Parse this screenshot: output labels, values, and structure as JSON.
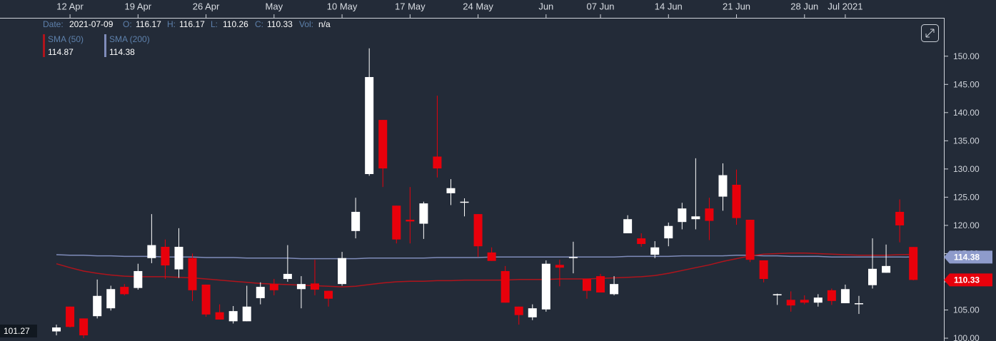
{
  "chart_data": {
    "type": "candlestick",
    "categories": [
      null,
      "12 Apr",
      null,
      null,
      null,
      null,
      "19 Apr",
      null,
      null,
      null,
      null,
      "26 Apr",
      null,
      null,
      null,
      null,
      "May",
      null,
      null,
      null,
      null,
      "10 May",
      null,
      null,
      null,
      null,
      "17 May",
      null,
      null,
      null,
      null,
      "24 May",
      null,
      null,
      null,
      null,
      "Jun",
      null,
      null,
      null,
      "07 Jun",
      null,
      null,
      null,
      null,
      "14 Jun",
      null,
      null,
      null,
      null,
      "21 Jun",
      null,
      null,
      null,
      null,
      "28 Jun",
      null,
      null,
      "Jul 2021",
      null,
      null,
      null,
      null,
      null
    ],
    "open": [
      101.2,
      105.6,
      103.5,
      103.9,
      105.3,
      109.1,
      108.9,
      114.2,
      116.2,
      112.2,
      114.2,
      109.5,
      104.6,
      103.0,
      103.0,
      107.1,
      109.6,
      110.5,
      108.7,
      109.7,
      108.4,
      109.6,
      119.0,
      129.1,
      138.7,
      123.5,
      121.0,
      120.3,
      132.2,
      125.7,
      124.1,
      122.0,
      115.2,
      111.9,
      105.6,
      103.7,
      105.1,
      113.0,
      114.2,
      110.5,
      111.0,
      107.8,
      118.6,
      117.7,
      114.8,
      117.7,
      120.6,
      121.1,
      123.0,
      125.1,
      127.2,
      121.0,
      113.8,
      107.6,
      106.8,
      106.8,
      106.3,
      108.5,
      106.2,
      106.2,
      109.4,
      111.6,
      122.4,
      116.17
    ],
    "high": [
      102.4,
      105.6,
      103.5,
      110.4,
      109.3,
      109.6,
      113.2,
      122.0,
      117.5,
      119.5,
      115.0,
      109.5,
      106.0,
      105.7,
      109.3,
      109.9,
      110.5,
      116.5,
      111.0,
      113.9,
      108.4,
      115.3,
      124.9,
      151.4,
      138.7,
      123.5,
      126.8,
      124.2,
      143.0,
      128.2,
      124.8,
      122.0,
      116.1,
      112.8,
      105.6,
      106.0,
      113.8,
      113.9,
      117.1,
      110.5,
      111.4,
      111.0,
      121.8,
      118.6,
      117.2,
      120.5,
      124.0,
      131.9,
      124.9,
      131.0,
      129.9,
      121.0,
      113.8,
      107.9,
      108.3,
      107.6,
      107.8,
      108.8,
      109.5,
      107.5,
      117.7,
      116.6,
      124.6,
      116.17
    ],
    "low": [
      100.5,
      101.9,
      100.0,
      103.5,
      104.9,
      107.6,
      108.6,
      113.3,
      110.5,
      110.7,
      106.6,
      103.8,
      103.3,
      102.6,
      103.0,
      106.0,
      107.6,
      110.0,
      105.3,
      107.6,
      105.6,
      109.3,
      117.7,
      128.8,
      126.8,
      116.8,
      116.8,
      117.6,
      128.5,
      123.6,
      121.6,
      114.4,
      113.7,
      106.3,
      102.4,
      103.2,
      104.7,
      109.2,
      111.5,
      107.0,
      108.1,
      107.6,
      118.6,
      116.2,
      114.2,
      116.3,
      119.3,
      119.3,
      117.4,
      122.6,
      120.1,
      113.5,
      109.9,
      105.9,
      104.7,
      106.0,
      105.6,
      105.9,
      106.2,
      104.3,
      108.8,
      111.6,
      117.0,
      110.26
    ],
    "close": [
      101.9,
      102.0,
      100.5,
      107.5,
      108.7,
      107.8,
      111.9,
      116.5,
      112.9,
      116.2,
      108.5,
      104.2,
      103.3,
      104.8,
      105.6,
      109.1,
      108.5,
      111.4,
      109.6,
      108.6,
      107.0,
      114.2,
      122.4,
      146.3,
      130.1,
      117.5,
      120.7,
      123.9,
      130.1,
      126.6,
      124.2,
      116.3,
      113.7,
      106.3,
      104.1,
      105.3,
      113.2,
      112.5,
      114.4,
      108.4,
      108.1,
      109.6,
      121.1,
      116.7,
      116.1,
      119.9,
      123.0,
      121.6,
      120.8,
      128.9,
      121.3,
      113.9,
      110.5,
      107.8,
      105.8,
      106.3,
      107.2,
      106.6,
      108.7,
      106.2,
      112.3,
      112.8,
      120.0,
      110.33
    ],
    "up_color": "#ffffff",
    "down_color": "#e8000b",
    "overlays": [
      {
        "name": "SMA (50)",
        "color": "#b0141c",
        "last_value": 114.87,
        "values": [
          113.2,
          112.5,
          111.9,
          111.5,
          111.2,
          111.0,
          110.9,
          110.9,
          110.9,
          110.8,
          110.7,
          110.5,
          110.3,
          110.1,
          109.9,
          109.7,
          109.6,
          109.5,
          109.4,
          109.3,
          109.2,
          109.1,
          109.2,
          109.5,
          109.8,
          110.0,
          110.1,
          110.1,
          110.2,
          110.2,
          110.3,
          110.3,
          110.3,
          110.3,
          110.4,
          110.4,
          110.4,
          110.5,
          110.5,
          110.5,
          110.6,
          110.7,
          110.8,
          110.9,
          111.1,
          111.5,
          112.0,
          112.5,
          113.0,
          113.6,
          114.1,
          114.6,
          114.9,
          115.0,
          115.1,
          115.1,
          115.0,
          114.9,
          114.8,
          114.7,
          114.7,
          114.7,
          114.8,
          114.87
        ]
      },
      {
        "name": "SMA (200)",
        "color": "#7f8cba",
        "last_value": 114.38,
        "values": [
          114.8,
          114.7,
          114.7,
          114.6,
          114.6,
          114.5,
          114.5,
          114.5,
          114.4,
          114.4,
          114.4,
          114.3,
          114.3,
          114.3,
          114.2,
          114.2,
          114.2,
          114.2,
          114.1,
          114.1,
          114.1,
          114.1,
          114.1,
          114.2,
          114.2,
          114.2,
          114.2,
          114.2,
          114.3,
          114.3,
          114.3,
          114.3,
          114.4,
          114.4,
          114.4,
          114.4,
          114.4,
          114.4,
          114.4,
          114.4,
          114.4,
          114.4,
          114.5,
          114.5,
          114.5,
          114.5,
          114.6,
          114.6,
          114.6,
          114.6,
          114.7,
          114.7,
          114.6,
          114.6,
          114.5,
          114.5,
          114.5,
          114.4,
          114.4,
          114.4,
          114.4,
          114.4,
          114.4,
          114.38
        ]
      }
    ],
    "crosshair_price": 101.27,
    "ylim": [
      99.5,
      156.8
    ],
    "yticks": [
      {
        "value": 100,
        "label": "100.00"
      },
      {
        "value": 105,
        "label": "105.00"
      },
      {
        "value": 110,
        "label": "110.00"
      },
      {
        "value": 115,
        "label": "115.00"
      },
      {
        "value": 120,
        "label": "120.00"
      },
      {
        "value": 125,
        "label": "125.00"
      },
      {
        "value": 130,
        "label": "130.00"
      },
      {
        "value": 135,
        "label": "135.00"
      },
      {
        "value": 140,
        "label": "140.00"
      },
      {
        "value": 145,
        "label": "145.00"
      },
      {
        "value": 150,
        "label": "150.00"
      }
    ],
    "info": {
      "date_label": "Date:",
      "date": "2021-07-09",
      "open_label": "O:",
      "high_label": "H:",
      "low_label": "L:",
      "close_label": "C:",
      "volume_label": "Vol:",
      "volume": "n/a"
    }
  }
}
